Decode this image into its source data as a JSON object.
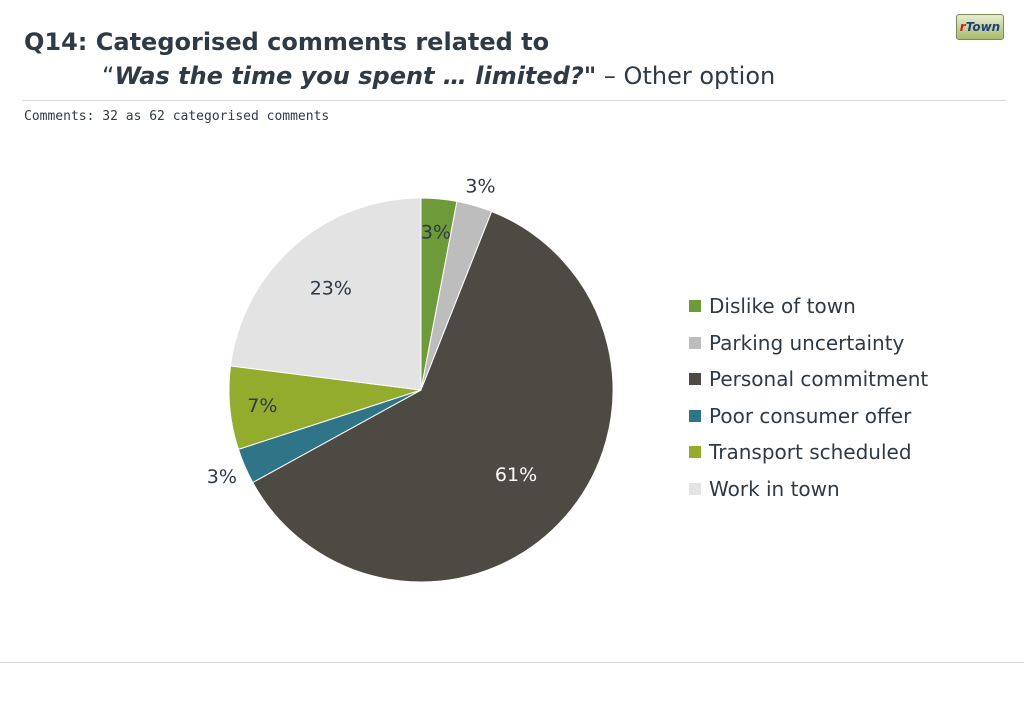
{
  "header": {
    "title_line1": "Q14: Categorised comments related to",
    "title_open_quote": "“",
    "title_question": "Was the time you spent … limited?",
    "title_close_quote": "\"",
    "title_rest": " – Other option",
    "subtitle": "Comments: 32 as 62 categorised comments"
  },
  "logo": {
    "prefix": "r",
    "text": "Town"
  },
  "chart_data": {
    "type": "pie",
    "title": "",
    "legend_position": "right",
    "slices": [
      {
        "name": "Dislike of town",
        "value": 3,
        "label": "3%",
        "color": "#6e9a3a"
      },
      {
        "name": "Parking uncertainty",
        "value": 3,
        "label": "3%",
        "color": "#bdbdbd"
      },
      {
        "name": "Personal commitment",
        "value": 61,
        "label": "61%",
        "color": "#4d4943"
      },
      {
        "name": "Poor consumer offer",
        "value": 3,
        "label": "3%",
        "color": "#2f7487"
      },
      {
        "name": "Transport scheduled",
        "value": 7,
        "label": "7%",
        "color": "#93ac2e"
      },
      {
        "name": "Work in town",
        "value": 23,
        "label": "23%",
        "color": "#e3e3e3"
      }
    ]
  }
}
